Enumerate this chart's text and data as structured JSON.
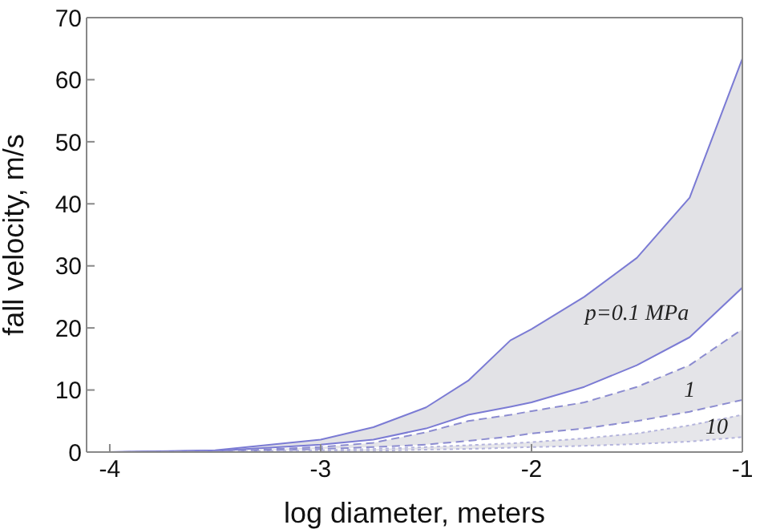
{
  "chart_data": {
    "type": "line",
    "xlabel": "log diameter, meters",
    "ylabel": "fall velocity, m/s",
    "x": [
      -4,
      -3.5,
      -3,
      -2.75,
      -2.5,
      -2.3,
      -2.1,
      -2,
      -1.75,
      -1.5,
      -1.25,
      -1
    ],
    "xlim": [
      -4.11,
      -1
    ],
    "xticks": [
      -4,
      -3,
      -2,
      -1
    ],
    "ylim": [
      0,
      70
    ],
    "yticks": [
      0,
      10,
      20,
      30,
      40,
      50,
      60,
      70
    ],
    "grid": false,
    "legend": false,
    "marker": "none",
    "series": [
      {
        "name": "p=0.1 MPa",
        "color": "#7b7bd4",
        "line_style": "solid",
        "values": [
          0,
          0.3,
          2,
          4,
          7.2,
          11.5,
          18,
          19.8,
          25,
          31.3,
          41,
          63.4
        ],
        "lower": [
          0,
          0.2,
          1.2,
          2,
          3.8,
          6,
          7.3,
          8,
          10.5,
          14,
          18.5,
          26.5
        ],
        "upper": [
          0,
          0.3,
          2,
          4,
          7.2,
          11.5,
          18,
          19.8,
          25,
          31.3,
          41,
          63.4
        ]
      },
      {
        "color": "#7b7bd4",
        "line_style": "solid",
        "values": [
          0,
          0.2,
          1.2,
          2,
          3.8,
          6,
          7.3,
          8,
          10.5,
          14,
          18.5,
          26.5
        ]
      },
      {
        "name": "1",
        "color": "#8c8cd0",
        "line_style": "dashed",
        "values": [
          0,
          0.1,
          0.8,
          1.5,
          3.2,
          5,
          6,
          6.6,
          8,
          10.5,
          14,
          19.8
        ],
        "lower": [
          0,
          0.05,
          0.5,
          0.8,
          1.2,
          1.8,
          2.5,
          3,
          3.8,
          5,
          6.5,
          8.4
        ],
        "upper": [
          0,
          0.1,
          0.8,
          1.5,
          3.2,
          5,
          6,
          6.6,
          8,
          10.5,
          14,
          19.8
        ]
      },
      {
        "color": "#8c8cd0",
        "line_style": "dashed",
        "values": [
          0,
          0.05,
          0.5,
          0.8,
          1.2,
          1.8,
          2.5,
          3,
          3.8,
          5,
          6.5,
          8.4
        ]
      },
      {
        "name": "10",
        "color": "#b4b4dc",
        "line_style": "dotted",
        "values": [
          0,
          0,
          0.3,
          0.5,
          0.8,
          1.1,
          1.4,
          1.6,
          2.2,
          3,
          4.3,
          6
        ],
        "lower": [
          0,
          0,
          0.1,
          0.2,
          0.4,
          0.5,
          0.7,
          0.8,
          1,
          1.3,
          1.7,
          2.4
        ],
        "upper": [
          0,
          0,
          0.3,
          0.5,
          0.8,
          1.1,
          1.4,
          1.6,
          2.2,
          3,
          4.3,
          6
        ]
      },
      {
        "color": "#b4b4dc",
        "line_style": "dotted",
        "values": [
          0,
          0,
          0.1,
          0.2,
          0.4,
          0.5,
          0.7,
          0.8,
          1,
          1.3,
          1.7,
          2.4
        ]
      }
    ]
  }
}
